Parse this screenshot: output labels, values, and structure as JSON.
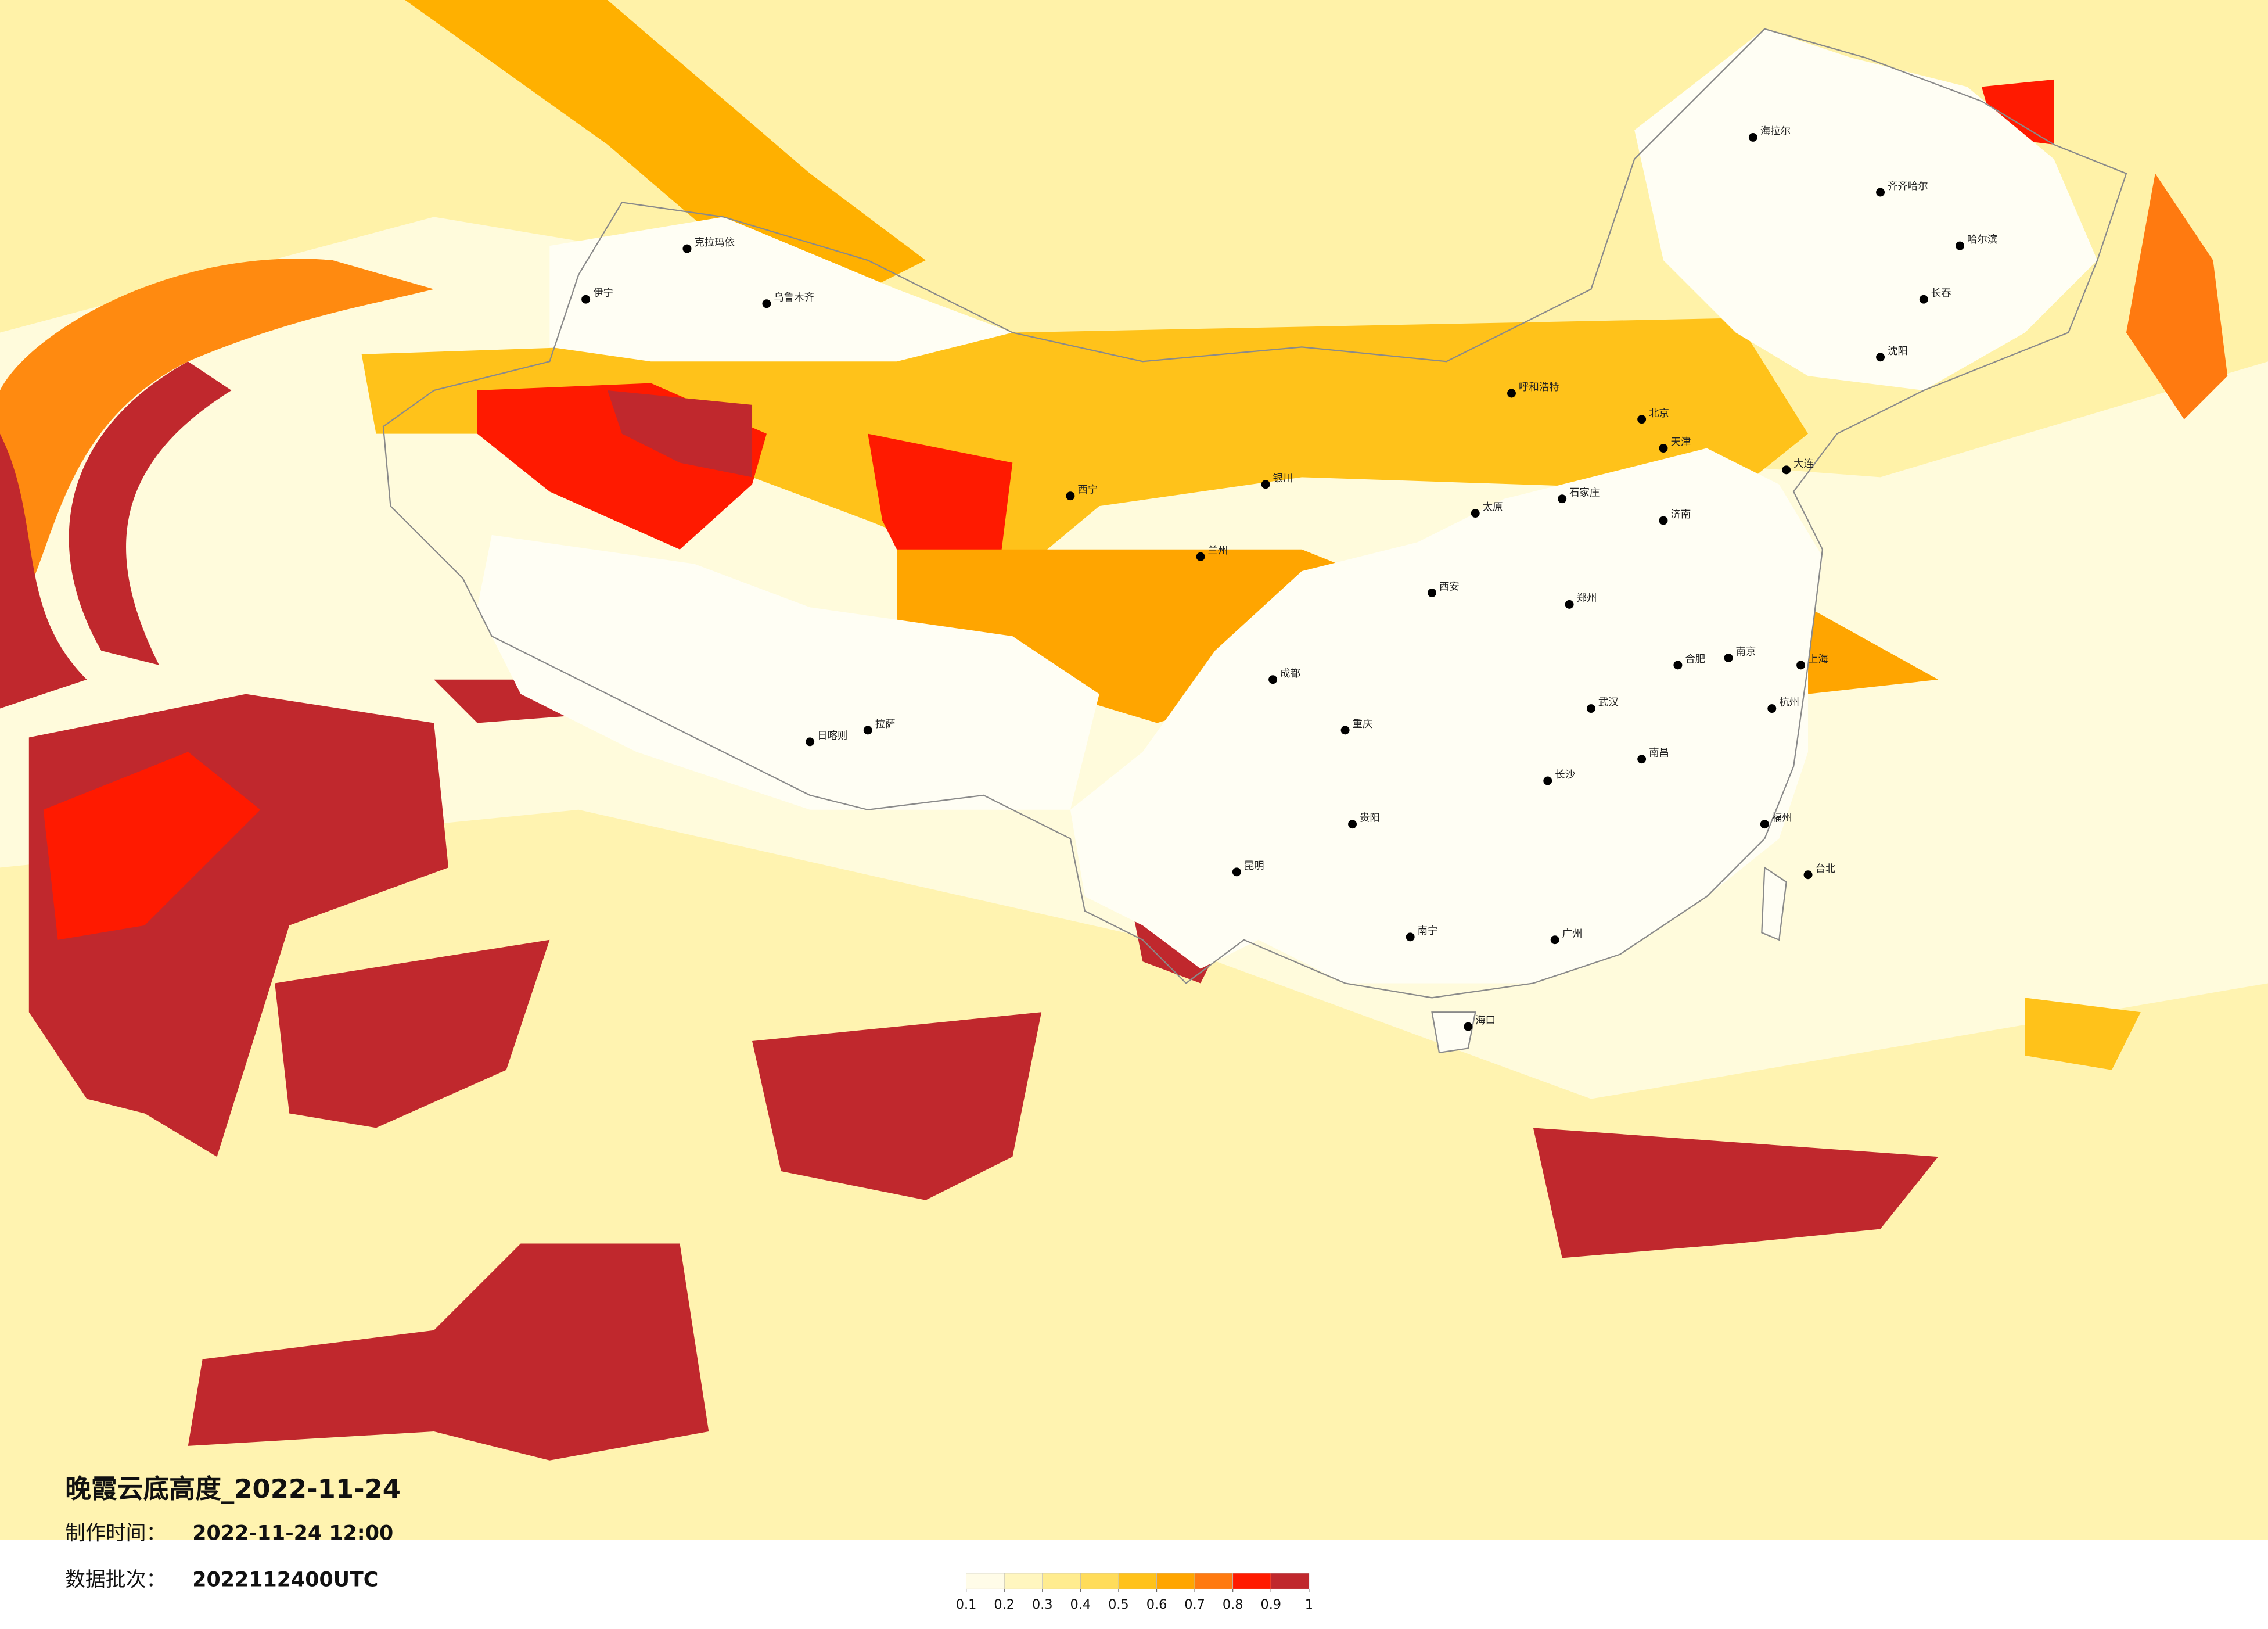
{
  "title": "晚霞云底高度_2022-11-24",
  "info": [
    {
      "label": "制作时间：",
      "value": "2022-11-24 12:00"
    },
    {
      "label": "数据批次：",
      "value": "2022112400UTC"
    }
  ],
  "legend": {
    "ticks": [
      0.1,
      0.2,
      0.3,
      0.4,
      0.5,
      0.6,
      0.7,
      0.8,
      0.9,
      1
    ],
    "colors": [
      "#fffce8",
      "#fff6bf",
      "#ffec8f",
      "#ffdc5a",
      "#ffc21a",
      "#ffa500",
      "#ff7a10",
      "#ff1a00",
      "#c0282d"
    ]
  },
  "cities": [
    "海拉尔",
    "齐齐哈尔",
    "哈尔滨",
    "长春",
    "沈阳",
    "大连",
    "北京",
    "天津",
    "石家庄",
    "太原",
    "呼和浩特",
    "济南",
    "郑州",
    "西安",
    "银川",
    "兰州",
    "西宁",
    "乌鲁木齐",
    "克拉玛依",
    "伊宁",
    "日喀则",
    "成都",
    "重庆",
    "贵阳",
    "昆明",
    "南宁",
    "海口",
    "广州",
    "长沙",
    "武汉",
    "南昌",
    "合肥",
    "南京",
    "上海",
    "杭州",
    "福州",
    "台北",
    "拉萨"
  ]
}
